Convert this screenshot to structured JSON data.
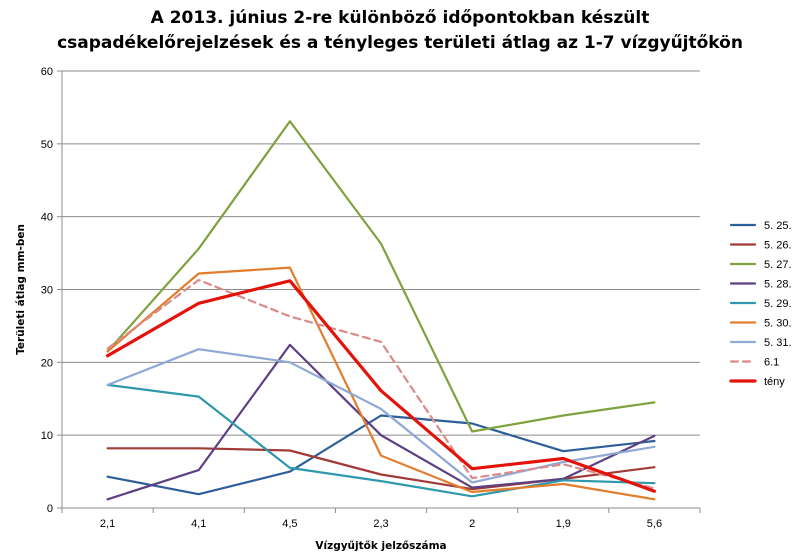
{
  "chart_data": {
    "type": "line",
    "title_line1": "A 2013. június 2-re különböző időpontokban készült",
    "title_line2": "csapadékelőrejelzések és a tényleges területi átlag az 1-7 vízgyűjtőkön",
    "xlabel": "Vízgyűjtők jelzőszáma",
    "ylabel": "Területi átlag mm-ben",
    "categories": [
      "2,1",
      "4,1",
      "4,5",
      "2,3",
      "2",
      "1,9",
      "5,6"
    ],
    "ylim": [
      0,
      60
    ],
    "yticks": [
      0,
      10,
      20,
      30,
      40,
      50,
      60
    ],
    "grid": true,
    "legend_position": "right",
    "series": [
      {
        "name": "5. 25.",
        "color": "#2E5E9A",
        "values": [
          4.3,
          1.9,
          5.0,
          12.7,
          11.6,
          7.8,
          9.2
        ]
      },
      {
        "name": "5. 26.",
        "color": "#A23A37",
        "values": [
          8.2,
          8.2,
          7.9,
          4.6,
          2.6,
          4.0,
          5.6
        ]
      },
      {
        "name": "5. 27.",
        "color": "#7EA23E",
        "values": [
          21.5,
          35.6,
          53.1,
          36.3,
          10.5,
          12.7,
          14.5
        ]
      },
      {
        "name": "5. 28.",
        "color": "#5D3F83",
        "values": [
          1.2,
          5.2,
          22.4,
          10.0,
          2.8,
          4.0,
          9.9
        ]
      },
      {
        "name": "5. 29.",
        "color": "#2E98AC",
        "values": [
          16.9,
          15.3,
          5.5,
          3.7,
          1.6,
          3.8,
          3.4
        ]
      },
      {
        "name": "5. 30.",
        "color": "#E27D2B",
        "values": [
          21.5,
          32.2,
          33.0,
          7.2,
          2.2,
          3.3,
          1.2
        ]
      },
      {
        "name": "5. 31.",
        "color": "#8FA8D6",
        "values": [
          16.9,
          21.8,
          20.0,
          13.6,
          3.5,
          6.3,
          8.4
        ]
      },
      {
        "name": "6.1",
        "color": "#DB8A8A",
        "dashed": true,
        "values": [
          21.9,
          31.3,
          26.3,
          22.8,
          4.1,
          6.0,
          2.7
        ]
      },
      {
        "name": "tény",
        "color": "#E3120B",
        "bold": true,
        "values": [
          20.9,
          28.1,
          31.2,
          16.1,
          5.4,
          6.8,
          2.3
        ]
      }
    ]
  }
}
